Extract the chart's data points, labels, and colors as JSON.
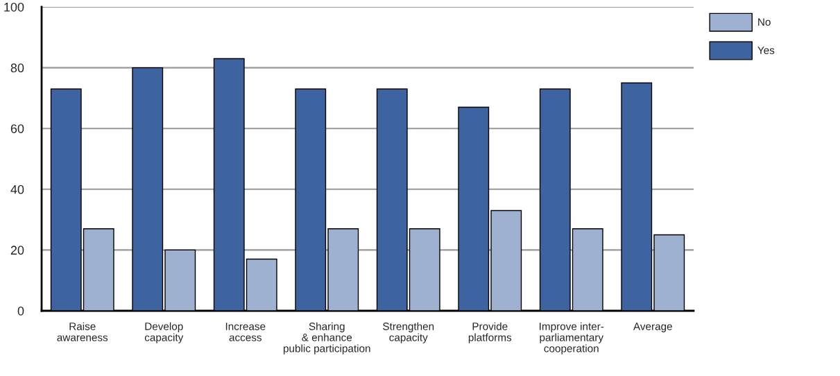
{
  "chart_data": {
    "type": "bar",
    "categories": [
      "Raise\nawareness",
      "Develop\ncapacity",
      "Increase\naccess",
      "Sharing\n& enhance\npublic participation",
      "Strengthen\ncapacity",
      "Provide\nplatforms",
      "Improve inter-\nparliamentary\ncooperation",
      "Average"
    ],
    "series": [
      {
        "name": "Yes",
        "color": "#3d64a0",
        "values": [
          73,
          80,
          83,
          73,
          73,
          67,
          73,
          75
        ]
      },
      {
        "name": "No",
        "color": "#9fb1d0",
        "values": [
          27,
          20,
          17,
          27,
          27,
          33,
          27,
          25
        ]
      }
    ],
    "ylim": [
      0,
      100
    ],
    "yticks": [
      0,
      20,
      40,
      60,
      80,
      100
    ],
    "grid": "y",
    "legend": "top right"
  }
}
